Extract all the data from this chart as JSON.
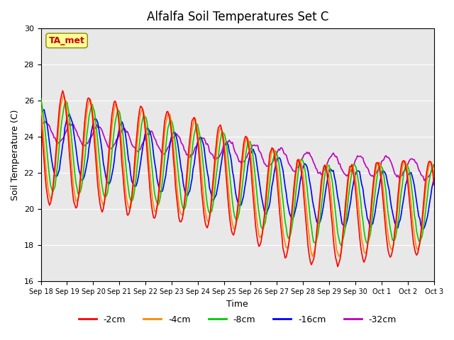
{
  "title": "Alfalfa Soil Temperatures Set C",
  "xlabel": "Time",
  "ylabel": "Soil Temperature (C)",
  "ylim": [
    16,
    30
  ],
  "yticks": [
    16,
    18,
    20,
    22,
    24,
    26,
    28,
    30
  ],
  "colors": {
    "-2cm": "#ff0000",
    "-4cm": "#ff8800",
    "-8cm": "#00cc00",
    "-16cm": "#0000ff",
    "-32cm": "#bb00bb"
  },
  "legend_labels": [
    "-2cm",
    "-4cm",
    "-8cm",
    "-16cm",
    "-32cm"
  ],
  "annotation_text": "TA_met",
  "annotation_color": "#cc0000",
  "annotation_bg": "#ffff99",
  "bg_color": "#e8e8e8",
  "fig_bg": "#ffffff",
  "x_tick_labels": [
    "Sep 18",
    "Sep 19",
    "Sep 20",
    "Sep 21",
    "Sep 22",
    "Sep 23",
    "Sep 24",
    "Sep 25",
    "Sep 26",
    "Sep 27",
    "Sep 28",
    "Sep 29",
    "Sep 30",
    "Oct 1",
    "Oct 2",
    "Oct 3"
  ],
  "num_points_per_day": 24,
  "num_days": 15
}
